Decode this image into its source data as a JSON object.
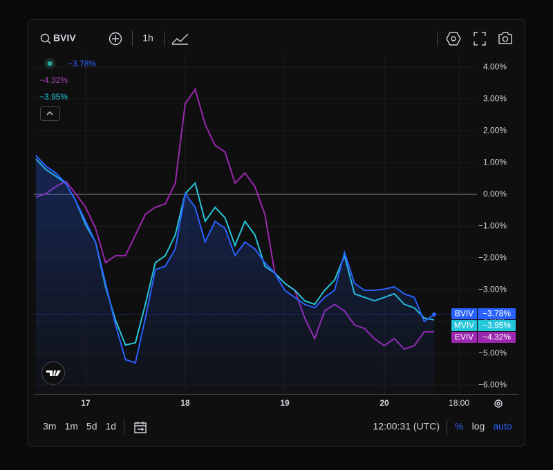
{
  "toolbar": {
    "symbol": "BVIV",
    "interval": "1h"
  },
  "bottom_bar": {
    "ranges": [
      "3m",
      "1m",
      "5d",
      "1d"
    ],
    "clock": "12:00:31 (UTC)",
    "percent": "%",
    "log": "log",
    "auto": "auto"
  },
  "chart_data": {
    "type": "line",
    "x": [
      16.5,
      16.6,
      16.7,
      16.8,
      16.9,
      17.0,
      17.1,
      17.2,
      17.3,
      17.4,
      17.5,
      17.6,
      17.7,
      17.8,
      17.9,
      18.0,
      18.1,
      18.2,
      18.3,
      18.4,
      18.5,
      18.6,
      18.7,
      18.8,
      18.9,
      19.0,
      19.1,
      19.2,
      19.3,
      19.4,
      19.5,
      19.6,
      19.7,
      19.8,
      19.9,
      20.0,
      20.1,
      20.2,
      20.3,
      20.4,
      20.5
    ],
    "series": [
      {
        "name": "BVIV",
        "color": "#2962ff",
        "last_label": "−3.78%",
        "values": [
          1.22,
          0.89,
          0.67,
          0.35,
          -0.2,
          -0.85,
          -1.5,
          -2.8,
          -4.1,
          -5.2,
          -5.3,
          -3.89,
          -2.37,
          -2.26,
          -1.72,
          0.02,
          -0.41,
          -1.5,
          -0.85,
          -1.07,
          -1.93,
          -1.5,
          -1.72,
          -2.15,
          -2.48,
          -3.02,
          -3.24,
          -3.46,
          -3.57,
          -3.24,
          -3.02,
          -1.83,
          -2.8,
          -3.02,
          -3.02,
          -2.98,
          -2.91,
          -3.13,
          -3.24,
          -4.0,
          -3.78
        ]
      },
      {
        "name": "MVIV",
        "color": "#26c6da",
        "last_label": "−3.95%",
        "values": [
          1.11,
          0.78,
          0.57,
          0.35,
          -0.2,
          -0.96,
          -1.5,
          -2.91,
          -3.96,
          -4.74,
          -4.67,
          -3.46,
          -2.15,
          -1.93,
          -1.28,
          0.02,
          0.35,
          -0.85,
          -0.41,
          -0.74,
          -1.61,
          -0.85,
          -1.28,
          -2.26,
          -2.48,
          -2.8,
          -3.02,
          -3.35,
          -3.46,
          -3.02,
          -2.7,
          -1.93,
          -3.13,
          -3.24,
          -3.35,
          -3.24,
          -3.13,
          -3.46,
          -3.57,
          -3.89,
          -3.95
        ]
      },
      {
        "name": "EVIV",
        "color": "#9c27b0",
        "last_label": "−4.32%",
        "values": [
          -0.09,
          0.02,
          0.24,
          0.41,
          0.02,
          -0.41,
          -1.07,
          -2.15,
          -1.93,
          -1.93,
          -1.28,
          -0.63,
          -0.41,
          -0.3,
          0.35,
          2.85,
          3.3,
          2.2,
          1.54,
          1.33,
          0.35,
          0.67,
          0.24,
          -0.63,
          -2.48,
          -2.8,
          -3.02,
          -3.89,
          -4.54,
          -3.67,
          -3.46,
          -3.67,
          -4.11,
          -4.22,
          -4.54,
          -4.76,
          -4.54,
          -4.87,
          -4.76,
          -4.33,
          -4.32
        ]
      }
    ],
    "xlim": [
      16.48,
      20.93
    ],
    "xticks": [
      17,
      18,
      19,
      20,
      {
        "value": 20.75,
        "label": "18:00"
      }
    ],
    "ylim": [
      -6.28,
      4.48
    ],
    "yticks": [
      {
        "value": 4,
        "label": "4.00%"
      },
      {
        "value": 3,
        "label": "3.00%"
      },
      {
        "value": 2,
        "label": "2.00%"
      },
      {
        "value": 1,
        "label": "1.00%"
      },
      {
        "value": 0,
        "label": "0.00%"
      },
      {
        "value": -1,
        "label": "−1.00%"
      },
      {
        "value": -2,
        "label": "−2.00%"
      },
      {
        "value": -3,
        "label": "−3.00%"
      },
      {
        "value": -4,
        "label": "−4.00%"
      },
      {
        "value": -5,
        "label": "−5.00%"
      },
      {
        "value": -6,
        "label": "−6.00%"
      }
    ],
    "grid": true
  }
}
